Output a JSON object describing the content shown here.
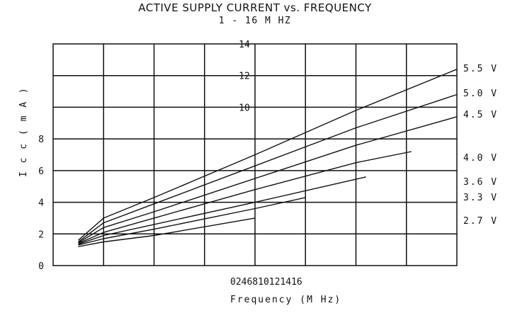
{
  "chart_data": {
    "type": "line",
    "title": "ACTIVE SUPPLY CURRENT vs. FREQUENCY",
    "subtitle": "1 - 16 M HZ",
    "xlabel": "Frequency (M Hz)",
    "ylabel": "I c c ( m A )",
    "x_tick_text": "0246810121416",
    "y_ticks_left": [
      "0",
      "2",
      "4",
      "6",
      "8"
    ],
    "y_ticks_inner": [
      "10",
      "12",
      "14"
    ],
    "xlim": [
      0,
      16
    ],
    "ylim": [
      0,
      14
    ],
    "grid": true,
    "series": [
      {
        "name": "5.5 V",
        "x": [
          1,
          2,
          4,
          8,
          12,
          16
        ],
        "y": [
          1.6,
          3.0,
          4.3,
          7.0,
          9.8,
          12.4
        ]
      },
      {
        "name": "5.0 V",
        "x": [
          1,
          2,
          4,
          8,
          12,
          16
        ],
        "y": [
          1.5,
          2.7,
          3.9,
          6.3,
          8.7,
          10.8
        ]
      },
      {
        "name": "4.5 V",
        "x": [
          1,
          2,
          4,
          8,
          12,
          16
        ],
        "y": [
          1.45,
          2.4,
          3.4,
          5.5,
          7.6,
          9.4
        ]
      },
      {
        "name": "4.0 V",
        "x": [
          1,
          2,
          4,
          8,
          12,
          14.2
        ],
        "y": [
          1.4,
          2.1,
          3.0,
          4.8,
          6.5,
          7.2
        ]
      },
      {
        "name": "3.6 V",
        "x": [
          1,
          2,
          4,
          8,
          12.4
        ],
        "y": [
          1.35,
          1.9,
          2.6,
          4.0,
          5.6
        ]
      },
      {
        "name": "3.3 V",
        "x": [
          1,
          2,
          4,
          8,
          10
        ],
        "y": [
          1.3,
          1.7,
          2.3,
          3.6,
          4.3
        ]
      },
      {
        "name": "2.7 V",
        "x": [
          1,
          2,
          4,
          8
        ],
        "y": [
          1.2,
          1.5,
          1.9,
          3.0
        ]
      }
    ]
  }
}
